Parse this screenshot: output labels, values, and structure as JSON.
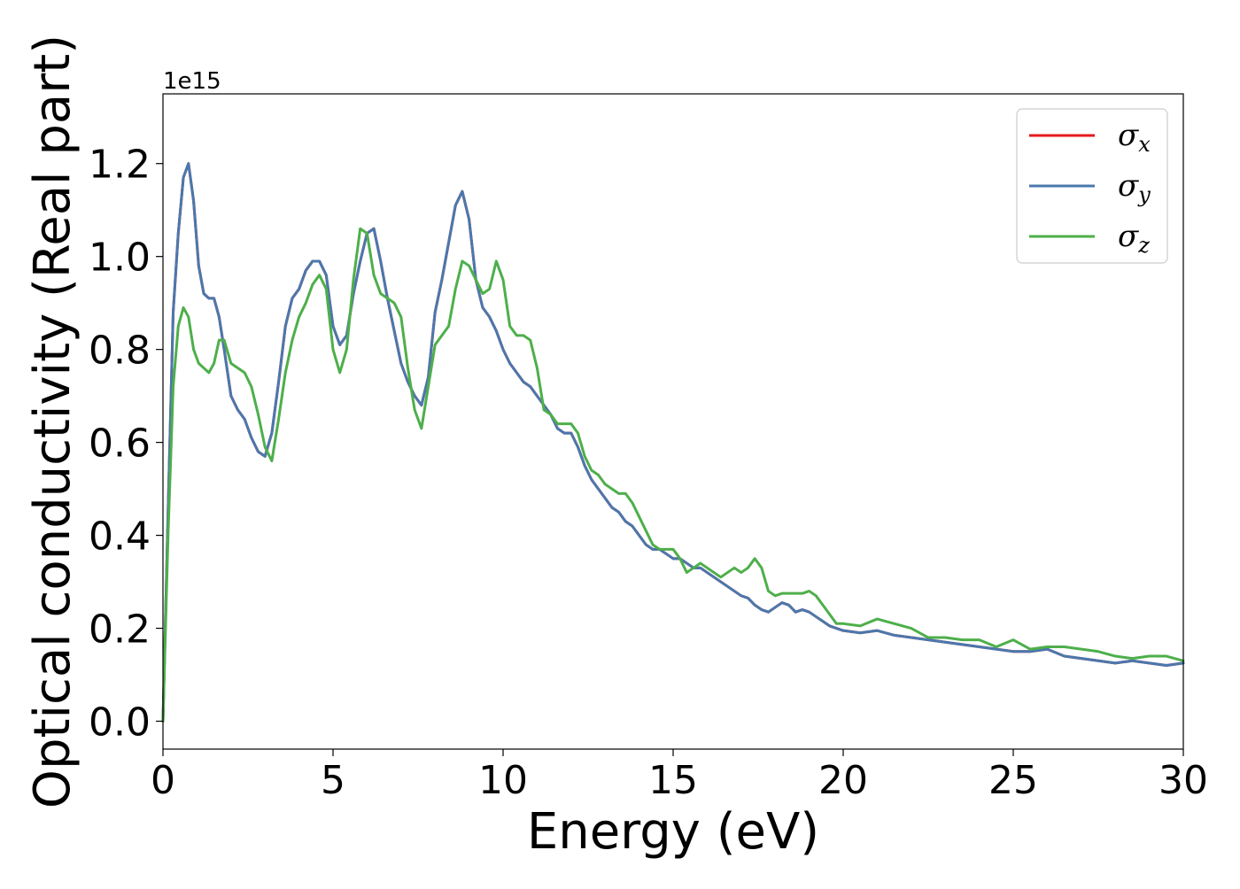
{
  "chart_data": {
    "type": "line",
    "xlabel": "Energy (eV)",
    "ylabel": "Optical conductivity (Real part)",
    "y_offset_label": "1e15",
    "xlim": [
      0,
      30
    ],
    "ylim": [
      -0.06,
      1.35
    ],
    "x_ticks": [
      0,
      5,
      10,
      15,
      20,
      25,
      30
    ],
    "x_tick_labels": [
      "0",
      "5",
      "10",
      "15",
      "20",
      "25",
      "30"
    ],
    "y_ticks": [
      0.0,
      0.2,
      0.4,
      0.6,
      0.8,
      1.0,
      1.2
    ],
    "y_tick_labels": [
      "0.0",
      "0.2",
      "0.4",
      "0.6",
      "0.8",
      "1.0",
      "1.2"
    ],
    "grid": false,
    "legend_position": "top-right",
    "series": [
      {
        "name": "σx",
        "legend_symbol": "σ",
        "legend_subscript": "x",
        "color": "#e41a1c",
        "x": [
          0,
          0.15,
          0.3,
          0.45,
          0.6,
          0.75,
          0.9,
          1.05,
          1.2,
          1.35,
          1.5,
          1.65,
          1.8,
          2.0,
          2.2,
          2.4,
          2.6,
          2.8,
          3.0,
          3.2,
          3.4,
          3.6,
          3.8,
          4.0,
          4.2,
          4.4,
          4.6,
          4.8,
          5.0,
          5.2,
          5.4,
          5.6,
          5.8,
          6.0,
          6.2,
          6.4,
          6.6,
          6.8,
          7.0,
          7.2,
          7.4,
          7.6,
          7.8,
          8.0,
          8.2,
          8.4,
          8.6,
          8.8,
          9.0,
          9.2,
          9.4,
          9.6,
          9.8,
          10.0,
          10.2,
          10.4,
          10.6,
          10.8,
          11.0,
          11.2,
          11.4,
          11.6,
          11.8,
          12.0,
          12.2,
          12.4,
          12.6,
          12.8,
          13.0,
          13.2,
          13.4,
          13.6,
          13.8,
          14.0,
          14.2,
          14.4,
          14.6,
          14.8,
          15.0,
          15.2,
          15.4,
          15.6,
          15.8,
          16.0,
          16.2,
          16.4,
          16.6,
          16.8,
          17.0,
          17.2,
          17.4,
          17.6,
          17.8,
          18.0,
          18.2,
          18.4,
          18.6,
          18.8,
          19.0,
          19.2,
          19.4,
          19.6,
          19.8,
          20.0,
          20.5,
          21.0,
          21.5,
          22.0,
          22.5,
          23.0,
          23.5,
          24.0,
          24.5,
          25.0,
          25.5,
          26.0,
          26.5,
          27.0,
          27.5,
          28.0,
          28.5,
          29.0,
          29.5,
          30.0
        ],
        "values": [
          0.0,
          0.45,
          0.88,
          1.05,
          1.17,
          1.2,
          1.12,
          0.98,
          0.92,
          0.91,
          0.91,
          0.87,
          0.8,
          0.7,
          0.67,
          0.65,
          0.61,
          0.58,
          0.57,
          0.62,
          0.73,
          0.85,
          0.91,
          0.93,
          0.97,
          0.99,
          0.99,
          0.96,
          0.85,
          0.81,
          0.83,
          0.92,
          0.99,
          1.05,
          1.06,
          0.99,
          0.91,
          0.84,
          0.77,
          0.73,
          0.7,
          0.68,
          0.74,
          0.88,
          0.95,
          1.03,
          1.11,
          1.14,
          1.08,
          0.95,
          0.89,
          0.87,
          0.84,
          0.8,
          0.77,
          0.75,
          0.73,
          0.72,
          0.7,
          0.68,
          0.66,
          0.63,
          0.62,
          0.62,
          0.59,
          0.55,
          0.52,
          0.5,
          0.48,
          0.46,
          0.45,
          0.43,
          0.42,
          0.4,
          0.38,
          0.37,
          0.37,
          0.36,
          0.35,
          0.35,
          0.34,
          0.33,
          0.33,
          0.32,
          0.31,
          0.3,
          0.29,
          0.28,
          0.27,
          0.265,
          0.25,
          0.24,
          0.235,
          0.245,
          0.255,
          0.25,
          0.235,
          0.24,
          0.235,
          0.225,
          0.215,
          0.205,
          0.2,
          0.195,
          0.19,
          0.195,
          0.185,
          0.18,
          0.175,
          0.17,
          0.165,
          0.16,
          0.155,
          0.15,
          0.15,
          0.155,
          0.14,
          0.135,
          0.13,
          0.125,
          0.13,
          0.125,
          0.12,
          0.125
        ]
      },
      {
        "name": "σy",
        "legend_symbol": "σ",
        "legend_subscript": "y",
        "color": "#4a78ad",
        "x": [
          0,
          0.15,
          0.3,
          0.45,
          0.6,
          0.75,
          0.9,
          1.05,
          1.2,
          1.35,
          1.5,
          1.65,
          1.8,
          2.0,
          2.2,
          2.4,
          2.6,
          2.8,
          3.0,
          3.2,
          3.4,
          3.6,
          3.8,
          4.0,
          4.2,
          4.4,
          4.6,
          4.8,
          5.0,
          5.2,
          5.4,
          5.6,
          5.8,
          6.0,
          6.2,
          6.4,
          6.6,
          6.8,
          7.0,
          7.2,
          7.4,
          7.6,
          7.8,
          8.0,
          8.2,
          8.4,
          8.6,
          8.8,
          9.0,
          9.2,
          9.4,
          9.6,
          9.8,
          10.0,
          10.2,
          10.4,
          10.6,
          10.8,
          11.0,
          11.2,
          11.4,
          11.6,
          11.8,
          12.0,
          12.2,
          12.4,
          12.6,
          12.8,
          13.0,
          13.2,
          13.4,
          13.6,
          13.8,
          14.0,
          14.2,
          14.4,
          14.6,
          14.8,
          15.0,
          15.2,
          15.4,
          15.6,
          15.8,
          16.0,
          16.2,
          16.4,
          16.6,
          16.8,
          17.0,
          17.2,
          17.4,
          17.6,
          17.8,
          18.0,
          18.2,
          18.4,
          18.6,
          18.8,
          19.0,
          19.2,
          19.4,
          19.6,
          19.8,
          20.0,
          20.5,
          21.0,
          21.5,
          22.0,
          22.5,
          23.0,
          23.5,
          24.0,
          24.5,
          25.0,
          25.5,
          26.0,
          26.5,
          27.0,
          27.5,
          28.0,
          28.5,
          29.0,
          29.5,
          30.0
        ],
        "values": [
          0.0,
          0.45,
          0.88,
          1.05,
          1.17,
          1.2,
          1.12,
          0.98,
          0.92,
          0.91,
          0.91,
          0.87,
          0.8,
          0.7,
          0.67,
          0.65,
          0.61,
          0.58,
          0.57,
          0.62,
          0.73,
          0.85,
          0.91,
          0.93,
          0.97,
          0.99,
          0.99,
          0.96,
          0.85,
          0.81,
          0.83,
          0.92,
          0.99,
          1.05,
          1.06,
          0.99,
          0.91,
          0.84,
          0.77,
          0.73,
          0.7,
          0.68,
          0.74,
          0.88,
          0.95,
          1.03,
          1.11,
          1.14,
          1.08,
          0.95,
          0.89,
          0.87,
          0.84,
          0.8,
          0.77,
          0.75,
          0.73,
          0.72,
          0.7,
          0.68,
          0.66,
          0.63,
          0.62,
          0.62,
          0.59,
          0.55,
          0.52,
          0.5,
          0.48,
          0.46,
          0.45,
          0.43,
          0.42,
          0.4,
          0.38,
          0.37,
          0.37,
          0.36,
          0.35,
          0.35,
          0.34,
          0.33,
          0.33,
          0.32,
          0.31,
          0.3,
          0.29,
          0.28,
          0.27,
          0.265,
          0.25,
          0.24,
          0.235,
          0.245,
          0.255,
          0.25,
          0.235,
          0.24,
          0.235,
          0.225,
          0.215,
          0.205,
          0.2,
          0.195,
          0.19,
          0.195,
          0.185,
          0.18,
          0.175,
          0.17,
          0.165,
          0.16,
          0.155,
          0.15,
          0.15,
          0.155,
          0.14,
          0.135,
          0.13,
          0.125,
          0.13,
          0.125,
          0.12,
          0.125
        ]
      },
      {
        "name": "σz",
        "legend_symbol": "σ",
        "legend_subscript": "z",
        "color": "#4daf4a",
        "x": [
          0,
          0.15,
          0.3,
          0.45,
          0.6,
          0.75,
          0.9,
          1.05,
          1.2,
          1.35,
          1.5,
          1.65,
          1.8,
          2.0,
          2.2,
          2.4,
          2.6,
          2.8,
          3.0,
          3.2,
          3.4,
          3.6,
          3.8,
          4.0,
          4.2,
          4.4,
          4.6,
          4.8,
          5.0,
          5.2,
          5.4,
          5.6,
          5.8,
          6.0,
          6.2,
          6.4,
          6.6,
          6.8,
          7.0,
          7.2,
          7.4,
          7.6,
          7.8,
          8.0,
          8.2,
          8.4,
          8.6,
          8.8,
          9.0,
          9.2,
          9.4,
          9.6,
          9.8,
          10.0,
          10.2,
          10.4,
          10.6,
          10.8,
          11.0,
          11.2,
          11.4,
          11.6,
          11.8,
          12.0,
          12.2,
          12.4,
          12.6,
          12.8,
          13.0,
          13.2,
          13.4,
          13.6,
          13.8,
          14.0,
          14.2,
          14.4,
          14.6,
          14.8,
          15.0,
          15.2,
          15.4,
          15.6,
          15.8,
          16.0,
          16.2,
          16.4,
          16.6,
          16.8,
          17.0,
          17.2,
          17.4,
          17.6,
          17.8,
          18.0,
          18.2,
          18.4,
          18.6,
          18.8,
          19.0,
          19.2,
          19.4,
          19.6,
          19.8,
          20.0,
          20.5,
          21.0,
          21.5,
          22.0,
          22.5,
          23.0,
          23.5,
          24.0,
          24.5,
          25.0,
          25.5,
          26.0,
          26.5,
          27.0,
          27.5,
          28.0,
          28.5,
          29.0,
          29.5,
          30.0
        ],
        "values": [
          0.0,
          0.4,
          0.72,
          0.85,
          0.89,
          0.87,
          0.8,
          0.77,
          0.76,
          0.75,
          0.77,
          0.82,
          0.82,
          0.77,
          0.76,
          0.75,
          0.72,
          0.66,
          0.59,
          0.56,
          0.65,
          0.75,
          0.82,
          0.87,
          0.9,
          0.94,
          0.96,
          0.93,
          0.8,
          0.75,
          0.8,
          0.95,
          1.06,
          1.05,
          0.96,
          0.92,
          0.91,
          0.9,
          0.87,
          0.76,
          0.67,
          0.63,
          0.72,
          0.81,
          0.83,
          0.85,
          0.93,
          0.99,
          0.98,
          0.95,
          0.92,
          0.93,
          0.99,
          0.95,
          0.85,
          0.83,
          0.83,
          0.82,
          0.76,
          0.67,
          0.66,
          0.64,
          0.64,
          0.64,
          0.62,
          0.57,
          0.54,
          0.53,
          0.51,
          0.5,
          0.49,
          0.49,
          0.47,
          0.44,
          0.41,
          0.38,
          0.37,
          0.37,
          0.37,
          0.35,
          0.32,
          0.33,
          0.34,
          0.33,
          0.32,
          0.31,
          0.32,
          0.33,
          0.32,
          0.33,
          0.35,
          0.33,
          0.28,
          0.27,
          0.275,
          0.275,
          0.275,
          0.275,
          0.28,
          0.27,
          0.25,
          0.23,
          0.21,
          0.21,
          0.205,
          0.22,
          0.21,
          0.2,
          0.18,
          0.18,
          0.175,
          0.175,
          0.16,
          0.175,
          0.155,
          0.16,
          0.16,
          0.155,
          0.15,
          0.14,
          0.135,
          0.14,
          0.14,
          0.13
        ]
      }
    ]
  }
}
